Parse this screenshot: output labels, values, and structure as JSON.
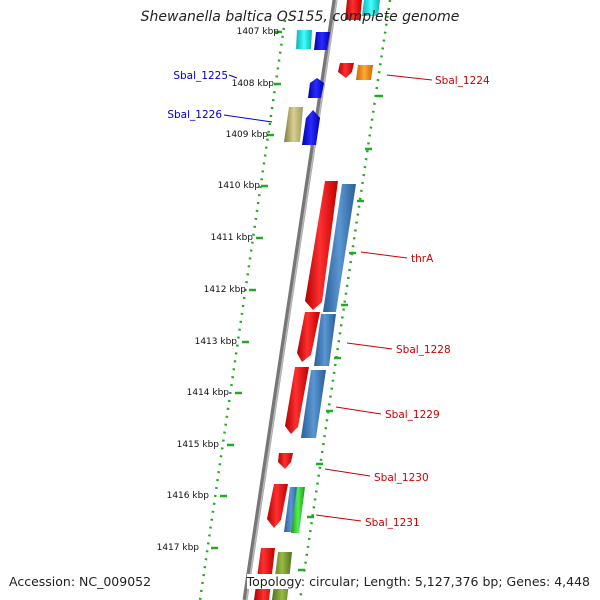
{
  "title": "Shewanella baltica OS155, complete genome",
  "accession": "Accession: NC_009052",
  "summary": "Topology: circular; Length: 5,127,376 bp; Genes: 4,448",
  "ticks": [
    "1407 kbp",
    "1408 kbp",
    "1409 kbp",
    "1410 kbp",
    "1411 kbp",
    "1412 kbp",
    "1413 kbp",
    "1414 kbp",
    "1415 kbp",
    "1416 kbp",
    "1417 kbp"
  ],
  "gene_labels": [
    {
      "name": "Sbal_1225",
      "color": "#0000cc"
    },
    {
      "name": "Sbal_1226",
      "color": "#0000cc"
    },
    {
      "name": "Sbal_1224",
      "color": "#cc0000"
    },
    {
      "name": "thrA",
      "color": "#cc0000"
    },
    {
      "name": "Sbal_1228",
      "color": "#cc0000"
    },
    {
      "name": "Sbal_1229",
      "color": "#cc0000"
    },
    {
      "name": "Sbal_1230",
      "color": "#cc0000"
    },
    {
      "name": "Sbal_1231",
      "color": "#cc0000"
    }
  ],
  "colors": {
    "cds_forward": "#ff1a1a",
    "cds_reverse": "#0000ee",
    "blast_blue": "#4a86c5",
    "cyan": "#20e0e0",
    "orange": "#ff8800",
    "khaki": "#c8c080",
    "green": "#33cc33",
    "olive": "#779933",
    "tick_green": "#22aa22",
    "backbone": "#8c8c8c"
  }
}
